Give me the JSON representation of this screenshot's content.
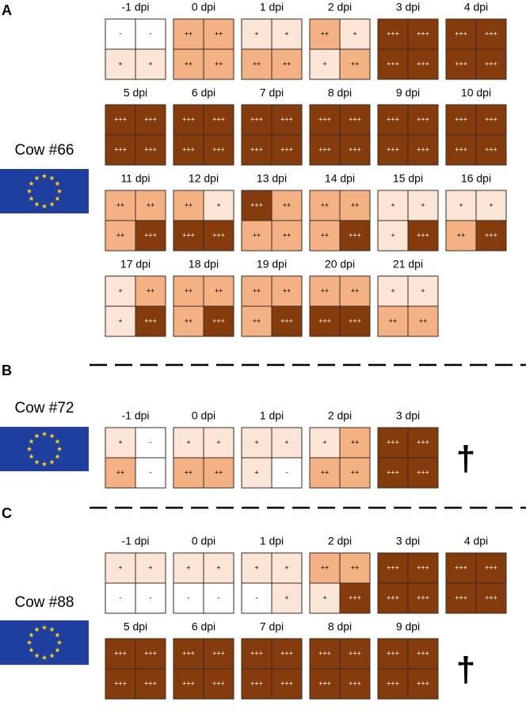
{
  "shades": {
    "-": "#ffffff",
    "+": "#fbe5d6",
    "++": "#f4b183",
    "+++": "#843c0c"
  },
  "panels": [
    {
      "label": "A",
      "cow": "Cow #66",
      "rows": [
        [
          {
            "day": "-1 dpi",
            "cells": [
              "-",
              "-",
              "+",
              "+"
            ]
          },
          {
            "day": "0 dpi",
            "cells": [
              "++",
              "++",
              "++",
              "++"
            ]
          },
          {
            "day": "1 dpi",
            "cells": [
              "+",
              "+",
              "++",
              "++"
            ]
          },
          {
            "day": "2 dpi",
            "cells": [
              "++",
              "+",
              "+",
              "++"
            ]
          },
          {
            "day": "3 dpi",
            "cells": [
              "+++",
              "+++",
              "+++",
              "+++"
            ]
          },
          {
            "day": "4 dpi",
            "cells": [
              "+++",
              "+++",
              "+++",
              "+++"
            ]
          }
        ],
        [
          {
            "day": "5 dpi",
            "cells": [
              "+++",
              "+++",
              "+++",
              "+++"
            ]
          },
          {
            "day": "6 dpi",
            "cells": [
              "+++",
              "+++",
              "+++",
              "+++"
            ]
          },
          {
            "day": "7 dpi",
            "cells": [
              "+++",
              "+++",
              "+++",
              "+++"
            ]
          },
          {
            "day": "8 dpi",
            "cells": [
              "+++",
              "+++",
              "+++",
              "+++"
            ]
          },
          {
            "day": "9 dpi",
            "cells": [
              "+++",
              "+++",
              "+++",
              "+++"
            ]
          },
          {
            "day": "10 dpi",
            "cells": [
              "+++",
              "+++",
              "+++",
              "+++"
            ]
          }
        ],
        [
          {
            "day": "11 dpi",
            "cells": [
              "++",
              "++",
              "++",
              "+++"
            ]
          },
          {
            "day": "12 dpi",
            "cells": [
              "++",
              "+",
              "+++",
              "+++"
            ]
          },
          {
            "day": "13 dpi",
            "cells": [
              "+++",
              "++",
              "++",
              "++"
            ]
          },
          {
            "day": "14 dpi",
            "cells": [
              "++",
              "++",
              "++",
              "+++"
            ]
          },
          {
            "day": "15 dpi",
            "cells": [
              "+",
              "+",
              "+",
              "+++"
            ]
          },
          {
            "day": "16 dpi",
            "cells": [
              "+",
              "+",
              "++",
              "+++"
            ]
          }
        ],
        [
          {
            "day": "17 dpi",
            "cells": [
              "+",
              "++",
              "+",
              "+++"
            ]
          },
          {
            "day": "18 dpi",
            "cells": [
              "++",
              "++",
              "++",
              "+++"
            ]
          },
          {
            "day": "19 dpi",
            "cells": [
              "++",
              "++",
              "++",
              "+++"
            ]
          },
          {
            "day": "20 dpi",
            "cells": [
              "++",
              "++",
              "+++",
              "+++"
            ]
          },
          {
            "day": "21 dpi",
            "cells": [
              "+",
              "+",
              "++",
              "++"
            ]
          }
        ]
      ]
    },
    {
      "label": "B",
      "cow": "Cow #72",
      "cross": "†",
      "rows": [
        [
          {
            "day": "-1 dpi",
            "cells": [
              "+",
              "-",
              "++",
              "-"
            ]
          },
          {
            "day": "0 dpi",
            "cells": [
              "+",
              "+",
              "++",
              "++"
            ]
          },
          {
            "day": "1 dpi",
            "cells": [
              "+",
              "+",
              "+",
              "-"
            ]
          },
          {
            "day": "2 dpi",
            "cells": [
              "+",
              "++",
              "++",
              "++"
            ]
          },
          {
            "day": "3 dpi",
            "cells": [
              "+++",
              "+++",
              "+++",
              "+++"
            ]
          }
        ]
      ]
    },
    {
      "label": "C",
      "cow": "Cow #88",
      "cross": "†",
      "rows": [
        [
          {
            "day": "-1 dpi",
            "cells": [
              "+",
              "+",
              "-",
              "-"
            ]
          },
          {
            "day": "0 dpi",
            "cells": [
              "+",
              "+",
              "-",
              "-"
            ]
          },
          {
            "day": "1 dpi",
            "cells": [
              "+",
              "+",
              "-",
              "+"
            ]
          },
          {
            "day": "2 dpi",
            "cells": [
              "++",
              "++",
              "+",
              "+++"
            ]
          },
          {
            "day": "3 dpi",
            "cells": [
              "+++",
              "+++",
              "+++",
              "+++"
            ]
          },
          {
            "day": "4 dpi",
            "cells": [
              "+++",
              "+++",
              "+++",
              "+++"
            ]
          }
        ],
        [
          {
            "day": "5 dpi",
            "cells": [
              "+++",
              "+++",
              "+++",
              "+++"
            ]
          },
          {
            "day": "6 dpi",
            "cells": [
              "+++",
              "+++",
              "+++",
              "+++"
            ]
          },
          {
            "day": "7 dpi",
            "cells": [
              "+++",
              "+++",
              "+++",
              "+++"
            ]
          },
          {
            "day": "8 dpi",
            "cells": [
              "+++",
              "+++",
              "+++",
              "+++"
            ]
          },
          {
            "day": "9 dpi",
            "cells": [
              "+++",
              "+++",
              "+++",
              "+++"
            ]
          }
        ]
      ]
    }
  ]
}
